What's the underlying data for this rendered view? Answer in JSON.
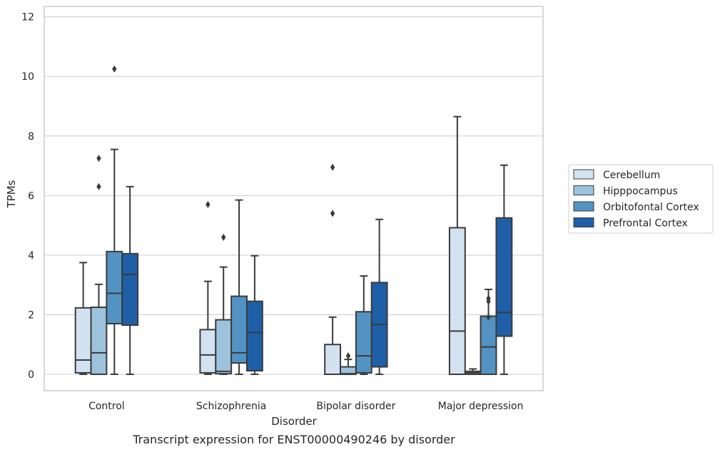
{
  "chart_data": {
    "type": "box",
    "title": "",
    "caption": "Transcript expression for ENST00000490246 by disorder",
    "xlabel": "Disorder",
    "ylabel": "TPMs",
    "ylim": [
      -0.55,
      12.35
    ],
    "yticks": [
      0,
      2,
      4,
      6,
      8,
      10,
      12
    ],
    "grid": "horizontal",
    "legend_position": "right",
    "categories": [
      "Control",
      "Schizophrenia",
      "Bipolar disorder",
      "Major depression"
    ],
    "series": [
      {
        "name": "Cerebellum",
        "color": "#d3e2f1",
        "boxes": [
          {
            "whislo": 0.0,
            "q1": 0.05,
            "med": 0.48,
            "q3": 2.23,
            "whishi": 3.75,
            "fliers": []
          },
          {
            "whislo": 0.0,
            "q1": 0.05,
            "med": 0.65,
            "q3": 1.5,
            "whishi": 3.12,
            "fliers": [
              5.7
            ]
          },
          {
            "whislo": 0.0,
            "q1": 0.0,
            "med": 0.0,
            "q3": 1.0,
            "whishi": 1.92,
            "fliers": [
              5.4,
              6.95
            ]
          },
          {
            "whislo": 0.0,
            "q1": 0.0,
            "med": 1.45,
            "q3": 4.92,
            "whishi": 8.65,
            "fliers": []
          }
        ]
      },
      {
        "name": "Hipppocampus",
        "color": "#9dc2dc",
        "boxes": [
          {
            "whislo": 0.0,
            "q1": 0.0,
            "med": 0.72,
            "q3": 2.25,
            "whishi": 3.02,
            "fliers": [
              6.3,
              7.25
            ]
          },
          {
            "whislo": 0.0,
            "q1": 0.02,
            "med": 0.1,
            "q3": 1.83,
            "whishi": 3.6,
            "fliers": [
              4.6
            ]
          },
          {
            "whislo": 0.0,
            "q1": 0.0,
            "med": 0.02,
            "q3": 0.25,
            "whishi": 0.5,
            "fliers": [
              0.62
            ]
          },
          {
            "whislo": 0.0,
            "q1": 0.0,
            "med": 0.05,
            "q3": 0.1,
            "whishi": 0.18,
            "fliers": []
          }
        ]
      },
      {
        "name": "Orbitofontal Cortex",
        "color": "#5393c3",
        "boxes": [
          {
            "whislo": 0.0,
            "q1": 1.7,
            "med": 2.72,
            "q3": 4.12,
            "whishi": 7.55,
            "fliers": [
              10.25
            ]
          },
          {
            "whislo": 0.0,
            "q1": 0.38,
            "med": 0.72,
            "q3": 2.62,
            "whishi": 5.85,
            "fliers": []
          },
          {
            "whislo": 0.0,
            "q1": 0.05,
            "med": 0.62,
            "q3": 2.1,
            "whishi": 3.3,
            "fliers": []
          },
          {
            "whislo": 0.0,
            "q1": 0.0,
            "med": 0.92,
            "q3": 1.95,
            "whishi": 2.85,
            "fliers": [
              1.92,
              2.45,
              2.55
            ]
          }
        ]
      },
      {
        "name": "Prefrontal Cortex",
        "color": "#1f5fa8",
        "boxes": [
          {
            "whislo": 0.0,
            "q1": 1.65,
            "med": 3.35,
            "q3": 4.05,
            "whishi": 6.3,
            "fliers": []
          },
          {
            "whislo": 0.0,
            "q1": 0.12,
            "med": 1.4,
            "q3": 2.45,
            "whishi": 3.98,
            "fliers": []
          },
          {
            "whislo": 0.0,
            "q1": 0.25,
            "med": 1.67,
            "q3": 3.08,
            "whishi": 5.2,
            "fliers": []
          },
          {
            "whislo": 0.0,
            "q1": 1.28,
            "med": 2.08,
            "q3": 5.25,
            "whishi": 7.02,
            "fliers": []
          }
        ]
      }
    ]
  }
}
